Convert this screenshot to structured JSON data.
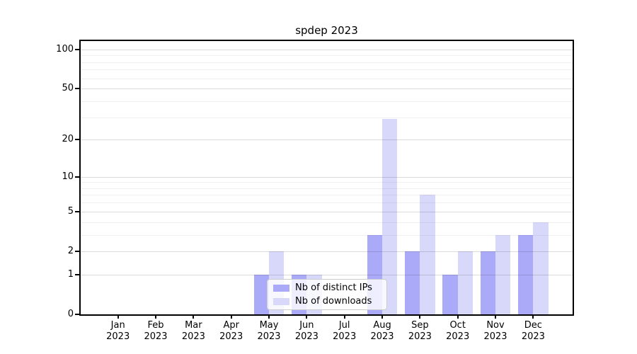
{
  "chart_data": {
    "type": "bar",
    "title": "spdep 2023",
    "categories": [
      "Jan",
      "Feb",
      "Mar",
      "Apr",
      "May",
      "Jun",
      "Jul",
      "Aug",
      "Sep",
      "Oct",
      "Nov",
      "Dec"
    ],
    "category_year": "2023",
    "series": [
      {
        "name": "Nb of distinct IPs",
        "color": "#aaaaf8",
        "values": [
          0,
          0,
          0,
          0,
          1,
          1,
          0,
          3,
          2,
          1,
          2,
          3
        ]
      },
      {
        "name": "Nb of downloads",
        "color": "#d8d8fa",
        "values": [
          0,
          0,
          0,
          0,
          2,
          1,
          0,
          29,
          7,
          2,
          3,
          4
        ]
      }
    ],
    "yscale": "log1p",
    "ylim": [
      0,
      116
    ],
    "y_major_ticks": [
      0,
      1,
      2,
      5,
      10,
      20,
      50,
      100
    ],
    "y_minor_gridlines": [
      3,
      4,
      6,
      7,
      8,
      9,
      30,
      40,
      60,
      70,
      80,
      90
    ],
    "grid": true,
    "legend_position": "lower center"
  },
  "colors": {
    "axis": "#000000",
    "background": "#ffffff"
  }
}
